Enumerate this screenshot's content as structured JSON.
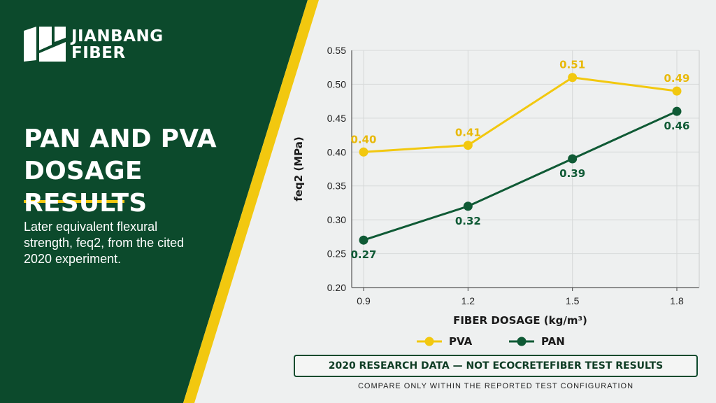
{
  "brand": {
    "name_line1": "JIANBANG",
    "name_line2": "FIBER"
  },
  "headline": {
    "line1": "PAN AND PVA",
    "line2": "DOSAGE RESULTS"
  },
  "subtext": "Later equivalent flexural strength, feq2, from the cited 2020 experiment.",
  "disclaimer": "2020 RESEARCH DATA — NOT ECOCRETEFIBER TEST RESULTS",
  "footnote": "COMPARE ONLY WITHIN THE REPORTED TEST CONFIGURATION",
  "colors": {
    "panel_green": "#0c4a2c",
    "accent_yellow": "#f2c80f",
    "pva": "#f2c80f",
    "pan": "#0f5a35",
    "background": "#eef0f0"
  },
  "chart_data": {
    "type": "line",
    "x": [
      0.9,
      1.2,
      1.5,
      1.8
    ],
    "x_tick_labels": [
      "0.9",
      "1.2",
      "1.5",
      "1.8"
    ],
    "xlabel": "FIBER DOSAGE (kg/m³)",
    "ylabel": "feq2 (MPa)",
    "ylim": [
      0.2,
      0.55
    ],
    "y_ticks": [
      0.2,
      0.25,
      0.3,
      0.35,
      0.4,
      0.45,
      0.5,
      0.55
    ],
    "y_tick_labels": [
      "0.20",
      "0.25",
      "0.30",
      "0.35",
      "0.40",
      "0.45",
      "0.50",
      "0.55"
    ],
    "grid": true,
    "legend_position": "bottom-center",
    "series": [
      {
        "name": "PVA",
        "color": "#f2c80f",
        "values": [
          0.4,
          0.41,
          0.51,
          0.49
        ],
        "data_labels": [
          "0.40",
          "0.41",
          "0.51",
          "0.49"
        ],
        "label_position": "above"
      },
      {
        "name": "PAN",
        "color": "#0f5a35",
        "values": [
          0.27,
          0.32,
          0.39,
          0.46
        ],
        "data_labels": [
          "0.27",
          "0.32",
          "0.39",
          "0.46"
        ],
        "label_position": "below"
      }
    ]
  }
}
